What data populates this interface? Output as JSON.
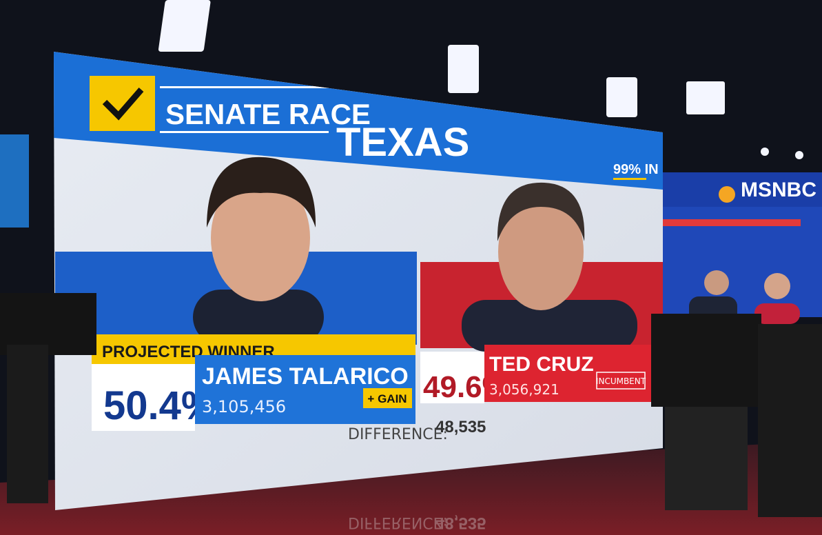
{
  "screen": {
    "header": {
      "race": "SENATE RACE",
      "state": "TEXAS",
      "reporting": "99% IN"
    },
    "winner": {
      "status": "PROJECTED WINNER",
      "percent": "50.4%",
      "name": "JAMES TALARICO",
      "votes": "3,105,456",
      "tag": "+ GAIN"
    },
    "opponent": {
      "percent": "49.6%",
      "name": "TED CRUZ",
      "votes": "3,056,921",
      "tag": "INCUMBENT"
    },
    "difference": {
      "label": "DIFFERENCE:",
      "value": "48,535"
    }
  },
  "network": {
    "logo": "MSNBC"
  }
}
